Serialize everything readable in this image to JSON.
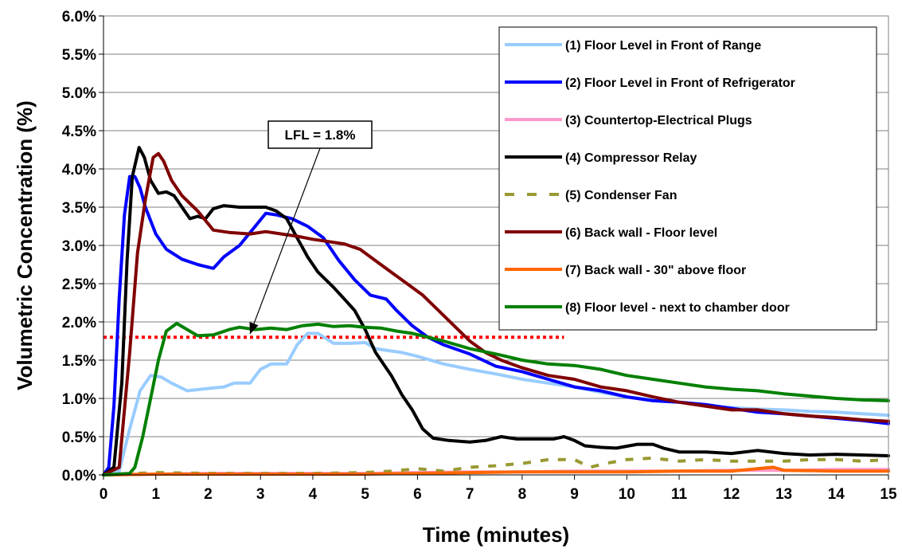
{
  "chart_data": {
    "type": "line",
    "xlabel": "Time (minutes)",
    "ylabel": "Volumetric Concentration (%)",
    "xlim": [
      0,
      15
    ],
    "ylim": [
      0,
      6.0
    ],
    "x_ticks": [
      "0",
      "1",
      "2",
      "3",
      "4",
      "5",
      "6",
      "7",
      "8",
      "9",
      "10",
      "11",
      "12",
      "13",
      "14",
      "15"
    ],
    "y_ticks": [
      "0.0%",
      "0.5%",
      "1.0%",
      "1.5%",
      "2.0%",
      "2.5%",
      "3.0%",
      "3.5%",
      "4.0%",
      "4.5%",
      "5.0%",
      "5.5%",
      "6.0%"
    ],
    "grid": "horizontal",
    "legend_position": "top-right",
    "annotation": {
      "text": "LFL = 1.8%",
      "points_to": {
        "x": 2.8,
        "y": 1.8
      }
    },
    "reference_line": {
      "y": 1.8,
      "x_range": [
        0,
        8.8
      ],
      "color": "#ff0000",
      "style": "dotted"
    },
    "series": [
      {
        "name": "(1) Floor Level in Front of Range",
        "color": "#99ccff",
        "style": "solid",
        "points": [
          [
            0,
            0
          ],
          [
            0.3,
            0.05
          ],
          [
            0.5,
            0.6
          ],
          [
            0.7,
            1.1
          ],
          [
            0.9,
            1.3
          ],
          [
            1.1,
            1.28
          ],
          [
            1.3,
            1.2
          ],
          [
            1.6,
            1.1
          ],
          [
            2.0,
            1.13
          ],
          [
            2.3,
            1.15
          ],
          [
            2.5,
            1.2
          ],
          [
            2.8,
            1.2
          ],
          [
            3.0,
            1.38
          ],
          [
            3.2,
            1.45
          ],
          [
            3.5,
            1.45
          ],
          [
            3.7,
            1.7
          ],
          [
            3.9,
            1.85
          ],
          [
            4.1,
            1.85
          ],
          [
            4.4,
            1.72
          ],
          [
            4.7,
            1.72
          ],
          [
            5.0,
            1.73
          ],
          [
            5.2,
            1.65
          ],
          [
            5.5,
            1.62
          ],
          [
            5.7,
            1.6
          ],
          [
            6.0,
            1.55
          ],
          [
            6.5,
            1.45
          ],
          [
            7.0,
            1.38
          ],
          [
            7.5,
            1.32
          ],
          [
            8.0,
            1.25
          ],
          [
            8.5,
            1.2
          ],
          [
            9.0,
            1.15
          ],
          [
            9.5,
            1.08
          ],
          [
            10,
            1.02
          ],
          [
            10.5,
            0.98
          ],
          [
            11,
            0.95
          ],
          [
            11.5,
            0.9
          ],
          [
            12,
            0.88
          ],
          [
            12.5,
            0.86
          ],
          [
            13,
            0.85
          ],
          [
            13.5,
            0.83
          ],
          [
            14,
            0.82
          ],
          [
            14.5,
            0.8
          ],
          [
            15,
            0.78
          ]
        ]
      },
      {
        "name": "(2) Floor Level in Front of Refrigerator",
        "color": "#0000ff",
        "style": "solid",
        "points": [
          [
            0,
            0
          ],
          [
            0.1,
            0.1
          ],
          [
            0.2,
            0.9
          ],
          [
            0.3,
            2.3
          ],
          [
            0.4,
            3.4
          ],
          [
            0.5,
            3.9
          ],
          [
            0.6,
            3.9
          ],
          [
            0.7,
            3.75
          ],
          [
            0.8,
            3.5
          ],
          [
            1.0,
            3.15
          ],
          [
            1.2,
            2.95
          ],
          [
            1.5,
            2.82
          ],
          [
            1.8,
            2.75
          ],
          [
            2.1,
            2.7
          ],
          [
            2.3,
            2.85
          ],
          [
            2.6,
            3.0
          ],
          [
            2.9,
            3.25
          ],
          [
            3.1,
            3.42
          ],
          [
            3.3,
            3.4
          ],
          [
            3.6,
            3.35
          ],
          [
            3.9,
            3.25
          ],
          [
            4.2,
            3.1
          ],
          [
            4.5,
            2.8
          ],
          [
            4.8,
            2.55
          ],
          [
            5.1,
            2.35
          ],
          [
            5.4,
            2.3
          ],
          [
            5.6,
            2.15
          ],
          [
            5.9,
            1.95
          ],
          [
            6.2,
            1.8
          ],
          [
            6.5,
            1.7
          ],
          [
            7.0,
            1.58
          ],
          [
            7.5,
            1.42
          ],
          [
            8.0,
            1.35
          ],
          [
            8.5,
            1.25
          ],
          [
            9.0,
            1.15
          ],
          [
            9.5,
            1.1
          ],
          [
            10,
            1.02
          ],
          [
            10.5,
            0.97
          ],
          [
            11,
            0.95
          ],
          [
            11.5,
            0.92
          ],
          [
            12,
            0.87
          ],
          [
            12.5,
            0.82
          ],
          [
            13,
            0.8
          ],
          [
            13.5,
            0.77
          ],
          [
            14,
            0.74
          ],
          [
            14.5,
            0.71
          ],
          [
            15,
            0.67
          ]
        ]
      },
      {
        "name": "(3) Countertop-Electrical Plugs",
        "color": "#ff99cc",
        "style": "solid",
        "points": [
          [
            0,
            0
          ],
          [
            1,
            0.01
          ],
          [
            2,
            0.02
          ],
          [
            3,
            0.02
          ],
          [
            4,
            0.02
          ],
          [
            5,
            0.02
          ],
          [
            6,
            0.03
          ],
          [
            7,
            0.04
          ],
          [
            8,
            0.04
          ],
          [
            9,
            0.05
          ],
          [
            10,
            0.05
          ],
          [
            11,
            0.05
          ],
          [
            12,
            0.06
          ],
          [
            13,
            0.06
          ],
          [
            14,
            0.07
          ],
          [
            15,
            0.07
          ]
        ]
      },
      {
        "name": "(4) Compressor Relay",
        "color": "#000000",
        "style": "solid",
        "points": [
          [
            0,
            0
          ],
          [
            0.2,
            0.1
          ],
          [
            0.35,
            1.2
          ],
          [
            0.45,
            2.8
          ],
          [
            0.55,
            3.9
          ],
          [
            0.68,
            4.28
          ],
          [
            0.78,
            4.15
          ],
          [
            0.9,
            3.85
          ],
          [
            1.05,
            3.68
          ],
          [
            1.2,
            3.7
          ],
          [
            1.35,
            3.65
          ],
          [
            1.5,
            3.5
          ],
          [
            1.65,
            3.35
          ],
          [
            1.8,
            3.38
          ],
          [
            1.95,
            3.35
          ],
          [
            2.1,
            3.48
          ],
          [
            2.3,
            3.52
          ],
          [
            2.6,
            3.5
          ],
          [
            2.9,
            3.5
          ],
          [
            3.1,
            3.5
          ],
          [
            3.3,
            3.45
          ],
          [
            3.5,
            3.35
          ],
          [
            3.7,
            3.1
          ],
          [
            3.9,
            2.85
          ],
          [
            4.1,
            2.65
          ],
          [
            4.4,
            2.45
          ],
          [
            4.6,
            2.3
          ],
          [
            4.8,
            2.15
          ],
          [
            5.0,
            1.9
          ],
          [
            5.2,
            1.6
          ],
          [
            5.5,
            1.3
          ],
          [
            5.7,
            1.05
          ],
          [
            5.9,
            0.85
          ],
          [
            6.1,
            0.6
          ],
          [
            6.3,
            0.48
          ],
          [
            6.6,
            0.45
          ],
          [
            7.0,
            0.43
          ],
          [
            7.3,
            0.45
          ],
          [
            7.6,
            0.5
          ],
          [
            7.9,
            0.47
          ],
          [
            8.2,
            0.47
          ],
          [
            8.6,
            0.47
          ],
          [
            8.8,
            0.5
          ],
          [
            9.0,
            0.45
          ],
          [
            9.2,
            0.38
          ],
          [
            9.5,
            0.36
          ],
          [
            9.8,
            0.35
          ],
          [
            10.2,
            0.4
          ],
          [
            10.5,
            0.4
          ],
          [
            10.7,
            0.35
          ],
          [
            11,
            0.3
          ],
          [
            11.5,
            0.3
          ],
          [
            12,
            0.28
          ],
          [
            12.5,
            0.32
          ],
          [
            13,
            0.28
          ],
          [
            13.5,
            0.26
          ],
          [
            14,
            0.27
          ],
          [
            14.5,
            0.26
          ],
          [
            15,
            0.25
          ]
        ]
      },
      {
        "name": "(5) Condenser Fan",
        "color": "#999933",
        "style": "dashed",
        "points": [
          [
            0,
            0
          ],
          [
            1,
            0.03
          ],
          [
            2,
            0.02
          ],
          [
            3,
            0.02
          ],
          [
            4,
            0.02
          ],
          [
            5,
            0.03
          ],
          [
            5.5,
            0.05
          ],
          [
            6,
            0.08
          ],
          [
            6.5,
            0.05
          ],
          [
            7,
            0.1
          ],
          [
            7.5,
            0.12
          ],
          [
            8,
            0.15
          ],
          [
            8.5,
            0.2
          ],
          [
            9,
            0.2
          ],
          [
            9.3,
            0.1
          ],
          [
            9.6,
            0.15
          ],
          [
            10,
            0.2
          ],
          [
            10.5,
            0.22
          ],
          [
            11,
            0.18
          ],
          [
            11.5,
            0.2
          ],
          [
            12,
            0.18
          ],
          [
            12.5,
            0.18
          ],
          [
            13,
            0.18
          ],
          [
            13.5,
            0.2
          ],
          [
            14,
            0.2
          ],
          [
            14.5,
            0.18
          ],
          [
            15,
            0.2
          ]
        ]
      },
      {
        "name": "(6) Back wall - Floor level",
        "color": "#800000",
        "style": "solid",
        "points": [
          [
            0,
            0
          ],
          [
            0.3,
            0.1
          ],
          [
            0.5,
            1.6
          ],
          [
            0.65,
            2.9
          ],
          [
            0.8,
            3.6
          ],
          [
            0.95,
            4.15
          ],
          [
            1.05,
            4.2
          ],
          [
            1.15,
            4.1
          ],
          [
            1.3,
            3.85
          ],
          [
            1.5,
            3.65
          ],
          [
            1.8,
            3.45
          ],
          [
            2.1,
            3.2
          ],
          [
            2.4,
            3.17
          ],
          [
            2.8,
            3.15
          ],
          [
            3.1,
            3.18
          ],
          [
            3.4,
            3.15
          ],
          [
            3.7,
            3.12
          ],
          [
            4.0,
            3.08
          ],
          [
            4.3,
            3.05
          ],
          [
            4.6,
            3.02
          ],
          [
            4.9,
            2.95
          ],
          [
            5.2,
            2.8
          ],
          [
            5.5,
            2.65
          ],
          [
            5.8,
            2.5
          ],
          [
            6.1,
            2.35
          ],
          [
            6.4,
            2.15
          ],
          [
            6.7,
            1.95
          ],
          [
            7.0,
            1.75
          ],
          [
            7.3,
            1.6
          ],
          [
            7.6,
            1.5
          ],
          [
            8.0,
            1.4
          ],
          [
            8.5,
            1.3
          ],
          [
            9.0,
            1.25
          ],
          [
            9.5,
            1.15
          ],
          [
            10,
            1.1
          ],
          [
            10.5,
            1.02
          ],
          [
            11,
            0.95
          ],
          [
            11.5,
            0.9
          ],
          [
            12,
            0.85
          ],
          [
            12.5,
            0.85
          ],
          [
            13,
            0.8
          ],
          [
            13.5,
            0.77
          ],
          [
            14,
            0.75
          ],
          [
            14.5,
            0.72
          ],
          [
            15,
            0.7
          ]
        ]
      },
      {
        "name": "(7) Back wall - 30\" above floor",
        "color": "#ff6600",
        "style": "solid",
        "points": [
          [
            0,
            0
          ],
          [
            1,
            0.01
          ],
          [
            2,
            0.01
          ],
          [
            3,
            0.01
          ],
          [
            4,
            0.01
          ],
          [
            5,
            0.01
          ],
          [
            6,
            0.02
          ],
          [
            7,
            0.03
          ],
          [
            8,
            0.04
          ],
          [
            9,
            0.04
          ],
          [
            10,
            0.04
          ],
          [
            11,
            0.05
          ],
          [
            12,
            0.05
          ],
          [
            12.8,
            0.1
          ],
          [
            13,
            0.06
          ],
          [
            14,
            0.05
          ],
          [
            15,
            0.05
          ]
        ]
      },
      {
        "name": "(8) Floor level - next to chamber door",
        "color": "#008000",
        "style": "solid",
        "points": [
          [
            0,
            0
          ],
          [
            0.5,
            0.02
          ],
          [
            0.6,
            0.1
          ],
          [
            0.75,
            0.5
          ],
          [
            0.9,
            1.0
          ],
          [
            1.05,
            1.5
          ],
          [
            1.2,
            1.88
          ],
          [
            1.4,
            1.98
          ],
          [
            1.6,
            1.9
          ],
          [
            1.8,
            1.82
          ],
          [
            2.1,
            1.83
          ],
          [
            2.4,
            1.9
          ],
          [
            2.6,
            1.93
          ],
          [
            2.9,
            1.9
          ],
          [
            3.2,
            1.92
          ],
          [
            3.5,
            1.9
          ],
          [
            3.8,
            1.95
          ],
          [
            4.1,
            1.97
          ],
          [
            4.4,
            1.94
          ],
          [
            4.7,
            1.95
          ],
          [
            5.0,
            1.93
          ],
          [
            5.3,
            1.92
          ],
          [
            5.6,
            1.88
          ],
          [
            5.9,
            1.85
          ],
          [
            6.2,
            1.8
          ],
          [
            6.5,
            1.75
          ],
          [
            7.0,
            1.65
          ],
          [
            7.5,
            1.58
          ],
          [
            8.0,
            1.5
          ],
          [
            8.5,
            1.45
          ],
          [
            9.0,
            1.43
          ],
          [
            9.5,
            1.38
          ],
          [
            10,
            1.3
          ],
          [
            10.5,
            1.25
          ],
          [
            11,
            1.2
          ],
          [
            11.5,
            1.15
          ],
          [
            12,
            1.12
          ],
          [
            12.5,
            1.1
          ],
          [
            13,
            1.06
          ],
          [
            13.5,
            1.03
          ],
          [
            14,
            1.0
          ],
          [
            14.5,
            0.98
          ],
          [
            15,
            0.97
          ]
        ]
      }
    ]
  }
}
